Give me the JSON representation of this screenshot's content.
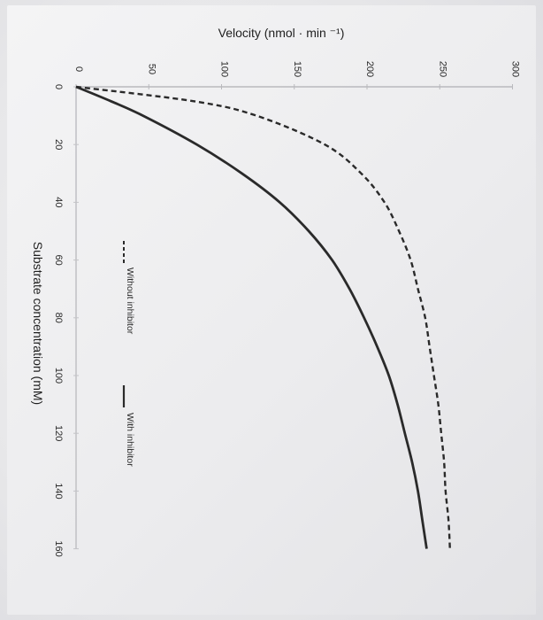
{
  "chart_data": {
    "type": "line",
    "orientation": "rotated-90-clockwise",
    "xlabel": "Substrate concentration (mM)",
    "ylabel": "Velocity (nmol · min ⁻¹)",
    "xlim": [
      0,
      160
    ],
    "ylim": [
      0,
      300
    ],
    "x_ticks": [
      "0",
      "20",
      "40",
      "60",
      "80",
      "100",
      "120",
      "140",
      "160"
    ],
    "y_ticks": [
      "0",
      "50",
      "100",
      "150",
      "200",
      "250",
      "300"
    ],
    "grid": false,
    "legend_position": "center-right",
    "series": [
      {
        "name": "Without inhibitor",
        "style": "dashed",
        "color": "#2a2a2a",
        "x": [
          0,
          5,
          10,
          20,
          30,
          40,
          50,
          60,
          70,
          80,
          90,
          100,
          110,
          120,
          130,
          140,
          150,
          160
        ],
        "y": [
          0,
          81,
          124,
          171,
          196,
          212,
          222,
          230,
          235,
          240,
          243,
          246,
          249,
          251,
          253,
          254,
          256,
          257
        ]
      },
      {
        "name": "With inhibitor",
        "style": "solid",
        "color": "#2a2a2a",
        "x": [
          0,
          5,
          10,
          20,
          30,
          40,
          50,
          60,
          70,
          80,
          90,
          100,
          110,
          120,
          130,
          140,
          150,
          160
        ],
        "y": [
          0,
          24,
          46,
          83,
          114,
          140,
          160,
          176,
          188,
          198,
          207,
          215,
          221,
          226,
          231,
          235,
          238,
          241
        ]
      }
    ]
  }
}
